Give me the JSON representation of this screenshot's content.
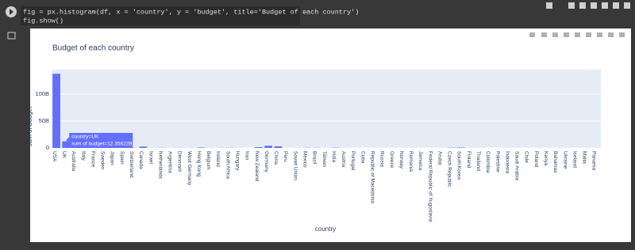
{
  "code": [
    "fig = px.histogram(df, x = 'country', y = 'budget', title='Budget of each country')",
    "fig.show()"
  ],
  "chart_data": {
    "type": "bar",
    "title": "Budget of each country",
    "x_label": "country",
    "y_label": "sum of budget",
    "categories": [
      "USA",
      "UK",
      "Australia",
      "Italy",
      "France",
      "Sweden",
      "Japan",
      "Spain",
      "Switzerland",
      "Canada",
      "Israel",
      "Netherlands",
      "Argentina",
      "Denmark",
      "West Germany",
      "Hong Kong",
      "Belgium",
      "Ireland",
      "South Africa",
      "Hungary",
      "Iran",
      "New Zealand",
      "Germany",
      "China",
      "Peru",
      "Soviet Union",
      "Mexico",
      "Brazil",
      "Taiwan",
      "India",
      "Austria",
      "Portugal",
      "Cuba",
      "Republic of Macedonia",
      "Russia",
      "Greece",
      "Norway",
      "Romania",
      "Jamaica",
      "Federal Republic of Yugoslavia",
      "Aruba",
      "Czech Republic",
      "South Korea",
      "Finland",
      "Thailand",
      "Colombia",
      "Palestine",
      "Indonesia",
      "Saudi Arabia",
      "Chile",
      "Poland",
      "Kenya",
      "Bahamas",
      "Ukraine",
      "Iceland",
      "Malta",
      "Panama"
    ],
    "values": [
      138000000000,
      12356220000,
      1000000000,
      500000000,
      1500000000,
      200000000,
      1000000000,
      500000000,
      300000000,
      2500000000,
      100000000,
      300000000,
      100000000,
      200000000,
      200000000,
      800000000,
      100000000,
      200000000,
      300000000,
      100000000,
      50000000,
      1500000000,
      4000000000,
      3000000000,
      50000000,
      100000000,
      300000000,
      300000000,
      100000000,
      500000000,
      100000000,
      50000000,
      20000000,
      50000000,
      100000000,
      100000000,
      100000000,
      100000000,
      50000000,
      50000000,
      20000000,
      500000000,
      800000000,
      100000000,
      100000000,
      50000000,
      20000000,
      100000000,
      100000000,
      50000000,
      100000000,
      50000000,
      50000000,
      100000000,
      50000000,
      100000000,
      50000000
    ],
    "color": "#636efa",
    "ylim": [
      0,
      145600000000
    ],
    "yticks": [
      0,
      {
        "value": 50000000000,
        "label": "50B"
      },
      {
        "value": 100000000000,
        "label": "100B"
      }
    ],
    "grid": true,
    "tooltip": [
      "country=UK",
      "sum of budget=12.35622B"
    ]
  }
}
